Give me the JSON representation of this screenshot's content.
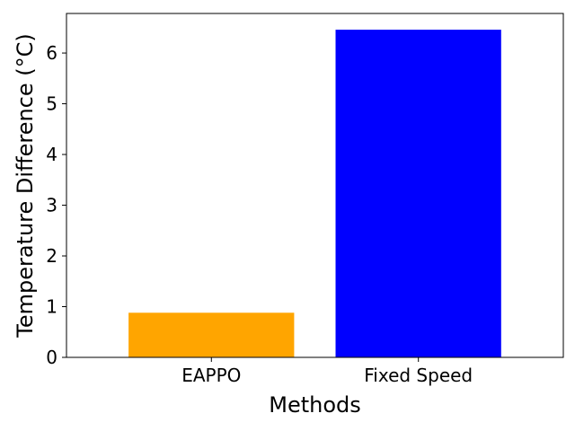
{
  "chart_data": {
    "type": "bar",
    "title": "",
    "xlabel": "Methods",
    "ylabel": "Temperature Difference (°C)",
    "categories": [
      "EAPPO",
      "Fixed Speed"
    ],
    "values": [
      0.88,
      6.46
    ],
    "bar_colors": [
      "#ffa500",
      "#0000ff"
    ],
    "ylim": [
      0,
      6.78
    ],
    "yticks": [
      0,
      1,
      2,
      3,
      4,
      5,
      6
    ],
    "ytick_labels": [
      "0",
      "1",
      "2",
      "3",
      "4",
      "5",
      "6"
    ],
    "grid": false,
    "legend": "none"
  }
}
